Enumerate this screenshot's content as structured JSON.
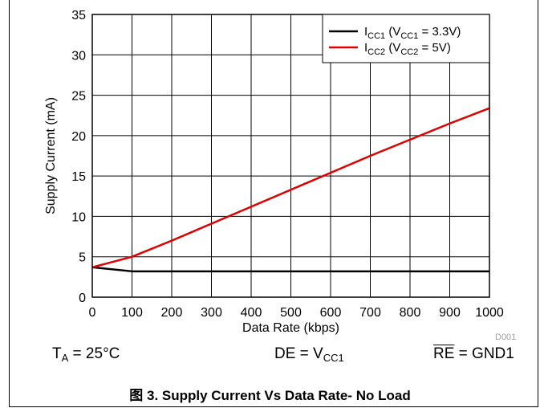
{
  "chart_data": {
    "type": "line",
    "xlabel": "Data Rate (kbps)",
    "ylabel": "Supply Current (mA)",
    "xlim": [
      0,
      1000
    ],
    "ylim": [
      0,
      35
    ],
    "xticks": [
      0,
      100,
      200,
      300,
      400,
      500,
      600,
      700,
      800,
      900,
      1000
    ],
    "yticks": [
      0,
      5,
      10,
      15,
      20,
      25,
      30,
      35
    ],
    "grid": true,
    "legend_position": "top-right",
    "series": [
      {
        "name": "ICC1 (VCC1 = 3.3V)",
        "name_main": "I",
        "name_sub": "CC1",
        "name_mid": " (V",
        "name_sub2": "CC1",
        "name_tail": " = 3.3V)",
        "color": "#000000",
        "x": [
          0,
          100,
          200,
          300,
          400,
          500,
          600,
          700,
          800,
          900,
          1000
        ],
        "y": [
          3.7,
          3.2,
          3.2,
          3.2,
          3.2,
          3.2,
          3.2,
          3.2,
          3.2,
          3.2,
          3.2
        ]
      },
      {
        "name": "ICC2 (VCC2 = 5V)",
        "name_main": "I",
        "name_sub": "CC2",
        "name_mid": " (V",
        "name_sub2": "CC2",
        "name_tail": " = 5V)",
        "color": "#e00000",
        "x": [
          0,
          100,
          200,
          300,
          400,
          500,
          600,
          700,
          800,
          900,
          1000
        ],
        "y": [
          3.7,
          5.0,
          7.0,
          9.1,
          11.2,
          13.3,
          15.4,
          17.5,
          19.5,
          21.5,
          23.4
        ]
      }
    ]
  },
  "conditions": {
    "ta_main": "T",
    "ta_sub": "A",
    "ta_rest": " = 25°C",
    "de_main": "DE = V",
    "de_sub": "CC1",
    "re_over": "RE",
    "re_rest": " = GND1"
  },
  "figure_id": "D001",
  "caption": "图 3. Supply Current Vs Data Rate- No Load"
}
